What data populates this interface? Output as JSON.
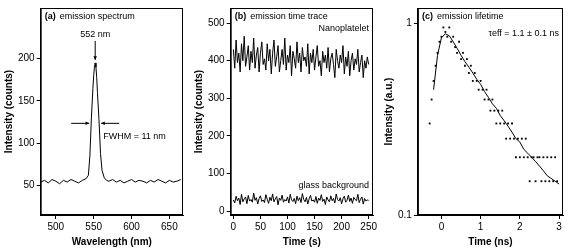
{
  "chart_data": [
    {
      "type": "line",
      "title": "(a)",
      "subtitle": "emission spectrum",
      "xlabel": "Wavelength (nm)",
      "ylabel": "Intensity (counts)",
      "xlim": [
        480,
        668
      ],
      "xticks": [
        500,
        550,
        600,
        650
      ],
      "ylim": [
        15,
        260
      ],
      "yticks": [
        50,
        100,
        150,
        200
      ],
      "grid": false,
      "annotations": [
        "552 nm",
        "FWHM = 11 nm"
      ],
      "series": [
        {
          "color": "#000000",
          "line_style": "solid",
          "x": [
            480,
            485,
            490,
            495,
            500,
            505,
            510,
            515,
            520,
            525,
            530,
            535,
            540,
            543,
            545,
            547,
            549,
            550,
            551,
            552,
            553,
            554,
            555,
            557,
            559,
            561,
            564,
            567,
            570,
            575,
            580,
            585,
            590,
            595,
            600,
            605,
            610,
            615,
            620,
            625,
            630,
            635,
            640,
            645,
            650,
            655,
            660,
            665
          ],
          "values": [
            54,
            56,
            53,
            57,
            55,
            52,
            56,
            54,
            57,
            55,
            53,
            56,
            58,
            62,
            85,
            130,
            165,
            180,
            190,
            195,
            190,
            178,
            160,
            128,
            88,
            68,
            59,
            56,
            55,
            57,
            54,
            56,
            53,
            55,
            57,
            54,
            56,
            55,
            53,
            56,
            54,
            57,
            55,
            53,
            56,
            54,
            55,
            57
          ]
        }
      ]
    },
    {
      "type": "line",
      "title": "(b)",
      "subtitle": "emission time trace",
      "xlabel": "Time (s)",
      "ylabel": "Intensity (counts)",
      "xlim": [
        -5,
        258
      ],
      "xticks": [
        0,
        50,
        100,
        150,
        200,
        250
      ],
      "ylim": [
        -10,
        540
      ],
      "yticks": [
        0,
        100,
        200,
        300,
        400,
        500
      ],
      "grid": false,
      "x": [
        0,
        2.5,
        5,
        7.5,
        10,
        12.5,
        15,
        17.5,
        20,
        22.5,
        25,
        27.5,
        30,
        32.5,
        35,
        37.5,
        40,
        42.5,
        45,
        47.5,
        50,
        52.5,
        55,
        57.5,
        60,
        62.5,
        65,
        67.5,
        70,
        72.5,
        75,
        77.5,
        80,
        82.5,
        85,
        87.5,
        90,
        92.5,
        95,
        97.5,
        100,
        102.5,
        105,
        107.5,
        110,
        112.5,
        115,
        117.5,
        120,
        122.5,
        125,
        127.5,
        130,
        132.5,
        135,
        137.5,
        140,
        142.5,
        145,
        147.5,
        150,
        152.5,
        155,
        157.5,
        160,
        162.5,
        165,
        167.5,
        170,
        172.5,
        175,
        177.5,
        180,
        182.5,
        185,
        187.5,
        190,
        192.5,
        195,
        197.5,
        200,
        202.5,
        205,
        207.5,
        210,
        212.5,
        215,
        217.5,
        220,
        222.5,
        225,
        227.5,
        230,
        232.5,
        235,
        237.5,
        240,
        242.5,
        245,
        247.5,
        250
      ],
      "series": [
        {
          "name": "Nanoplatelet",
          "color": "#000000",
          "line_style": "solid",
          "values": [
            430,
            380,
            455,
            395,
            420,
            370,
            445,
            400,
            465,
            385,
            410,
            440,
            375,
            425,
            395,
            460,
            380,
            415,
            435,
            370,
            420,
            450,
            390,
            405,
            375,
            445,
            400,
            430,
            365,
            420,
            455,
            385,
            410,
            440,
            370,
            400,
            430,
            390,
            460,
            375,
            415,
            395,
            440,
            360,
            425,
            405,
            380,
            450,
            395,
            420,
            370,
            435,
            400,
            410,
            385,
            445,
            365,
            420,
            395,
            430,
            375,
            410,
            440,
            385,
            400,
            360,
            425,
            395,
            415,
            380,
            435,
            370,
            405,
            420,
            390,
            355,
            430,
            400,
            380,
            415,
            395,
            440,
            365,
            410,
            385,
            425,
            360,
            400,
            420,
            375,
            405,
            390,
            430,
            370,
            395,
            415,
            355,
            400,
            380,
            410,
            390
          ]
        },
        {
          "name": "glass background",
          "color": "#000000",
          "line_style": "solid",
          "values": [
            30,
            22,
            40,
            28,
            35,
            18,
            45,
            25,
            33,
            38,
            20,
            42,
            27,
            31,
            24,
            48,
            29,
            36,
            19,
            34,
            41,
            26,
            30,
            23,
            44,
            32,
            21,
            37,
            28,
            46,
            25,
            33,
            39,
            17,
            35,
            29,
            43,
            24,
            31,
            27,
            38,
            22,
            45,
            30,
            26,
            34,
            20,
            40,
            28,
            36,
            23,
            47,
            31,
            25,
            37,
            19,
            33,
            42,
            27,
            30,
            24,
            39,
            21,
            35,
            29,
            44,
            26,
            32,
            18,
            38,
            30,
            25,
            41,
            28,
            34,
            22,
            46,
            31,
            27,
            36,
            20,
            33,
            40,
            24,
            29,
            43,
            26,
            35,
            21,
            37,
            31,
            28,
            45,
            23,
            32,
            38,
            19,
            34,
            27,
            30,
            29
          ]
        }
      ]
    },
    {
      "type": "scatter",
      "title": "(c)",
      "subtitle": "emission lifetime",
      "xlabel": "Time (ns)",
      "ylabel": "Intensity (a.u.)",
      "xlim": [
        -0.6,
        3.1
      ],
      "xticks": [
        0,
        1,
        2,
        3
      ],
      "ylim": [
        0.1,
        1.2
      ],
      "yticks": [
        0.1,
        1
      ],
      "log": "y",
      "grid": false,
      "annotations": [
        "τeff = 1.1 ± 0.1 ns"
      ],
      "series": [
        {
          "type": "scatter",
          "marker": "square",
          "color": "#000000",
          "x": [
            -0.3,
            -0.25,
            -0.2,
            -0.15,
            -0.1,
            -0.05,
            0,
            0.05,
            0.1,
            0.15,
            0.2,
            0.25,
            0.3,
            0.35,
            0.4,
            0.45,
            0.5,
            0.55,
            0.6,
            0.65,
            0.7,
            0.75,
            0.8,
            0.85,
            0.9,
            0.95,
            1,
            1.05,
            1.1,
            1.15,
            1.2,
            1.25,
            1.3,
            1.35,
            1.4,
            1.45,
            1.5,
            1.55,
            1.6,
            1.65,
            1.7,
            1.75,
            1.8,
            1.85,
            1.9,
            1.95,
            2,
            2.05,
            2.1,
            2.15,
            2.2,
            2.25,
            2.3,
            2.35,
            2.4,
            2.45,
            2.5,
            2.55,
            2.6,
            2.65,
            2.7,
            2.75,
            2.8,
            2.85,
            2.9,
            2.95
          ],
          "values": [
            0.3,
            0.4,
            0.5,
            0.6,
            0.7,
            0.8,
            0.85,
            0.95,
            0.9,
            0.85,
            0.95,
            0.8,
            0.85,
            0.75,
            0.7,
            0.8,
            0.65,
            0.7,
            0.6,
            0.65,
            0.55,
            0.6,
            0.5,
            0.55,
            0.5,
            0.45,
            0.5,
            0.45,
            0.4,
            0.45,
            0.4,
            0.35,
            0.4,
            0.35,
            0.3,
            0.35,
            0.3,
            0.35,
            0.3,
            0.25,
            0.3,
            0.25,
            0.3,
            0.25,
            0.2,
            0.25,
            0.2,
            0.25,
            0.2,
            0.25,
            0.2,
            0.15,
            0.2,
            0.2,
            0.15,
            0.2,
            0.2,
            0.15,
            0.2,
            0.15,
            0.2,
            0.15,
            0.2,
            0.15,
            0.2,
            0.15
          ]
        },
        {
          "type": "line",
          "line_style": "solid",
          "color": "#000000",
          "x": [
            -0.2,
            -0.1,
            0,
            0.1,
            0.2,
            0.3,
            0.4,
            0.5,
            0.6,
            0.7,
            0.8,
            0.9,
            1,
            1.1,
            1.2,
            1.3,
            1.4,
            1.5,
            1.6,
            1.7,
            1.8,
            1.9,
            2,
            2.1,
            2.2,
            2.3,
            2.4,
            2.5,
            2.6,
            2.7,
            2.8,
            2.9,
            3
          ],
          "values": [
            0.45,
            0.68,
            0.84,
            0.88,
            0.86,
            0.8,
            0.74,
            0.68,
            0.63,
            0.59,
            0.55,
            0.51,
            0.48,
            0.44,
            0.41,
            0.38,
            0.36,
            0.33,
            0.31,
            0.29,
            0.27,
            0.25,
            0.24,
            0.22,
            0.21,
            0.2,
            0.19,
            0.18,
            0.17,
            0.16,
            0.155,
            0.15,
            0.145
          ]
        }
      ]
    }
  ]
}
